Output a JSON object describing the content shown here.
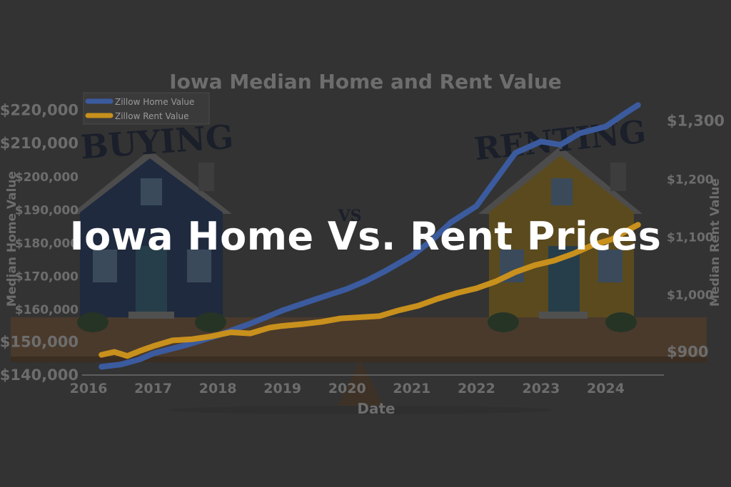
{
  "hero_title": "Iowa Home Vs. Rent Prices",
  "illustration": {
    "left_sign": "BUYING",
    "middle_sign": "VS",
    "right_sign": "RENTING"
  },
  "colors": {
    "background": "#333333",
    "home_series": "#3b5b9e",
    "rent_series": "#c8901c",
    "axis_text": "#6d6d6d",
    "hero_text": "#ffffff"
  },
  "chart_data": {
    "type": "line",
    "title": "Iowa Median Home and Rent Value",
    "xlabel": "Date",
    "ylabel": "Median Home Value",
    "y2label": "Median Rent Value",
    "x_ticks": [
      "2016",
      "2017",
      "2018",
      "2019",
      "2020",
      "2021",
      "2022",
      "2023",
      "2024"
    ],
    "y_ticks": [
      "$140,000",
      "$150,000",
      "$160,000",
      "$170,000",
      "$180,000",
      "$190,000",
      "$200,000",
      "$210,000",
      "$220,000"
    ],
    "y2_ticks": [
      "$900",
      "$1,000",
      "$1,100",
      "$1,200",
      "$1,300"
    ],
    "xlim": [
      2015.9,
      2024.9
    ],
    "ylim": [
      140000,
      222000
    ],
    "y2lim": [
      860,
      1330
    ],
    "legend_position": "top-left",
    "series": [
      {
        "name": "Zillow Home Value",
        "axis": "left",
        "color": "#3b5b9e",
        "x": [
          2016.2,
          2016.5,
          2016.8,
          2017.0,
          2017.5,
          2018.0,
          2018.5,
          2019.0,
          2019.5,
          2020.0,
          2020.3,
          2020.6,
          2021.0,
          2021.3,
          2021.6,
          2022.0,
          2022.3,
          2022.6,
          2023.0,
          2023.3,
          2023.6,
          2024.0,
          2024.3,
          2024.5
        ],
        "y": [
          142500,
          143200,
          144800,
          146500,
          149000,
          152000,
          155500,
          159500,
          162800,
          166000,
          168500,
          171500,
          176000,
          180500,
          186000,
          191000,
          199000,
          207000,
          210500,
          209500,
          213000,
          215000,
          219000,
          221500
        ]
      },
      {
        "name": "Zillow Rent Value",
        "axis": "right",
        "color": "#c8901c",
        "x": [
          2016.2,
          2016.4,
          2016.6,
          2016.8,
          2017.0,
          2017.3,
          2017.6,
          2017.9,
          2018.2,
          2018.5,
          2018.8,
          2019.0,
          2019.3,
          2019.6,
          2019.9,
          2020.2,
          2020.5,
          2020.8,
          2021.1,
          2021.4,
          2021.7,
          2022.0,
          2022.3,
          2022.6,
          2022.9,
          2023.2,
          2023.5,
          2023.8,
          2024.1,
          2024.3,
          2024.5
        ],
        "y": [
          895,
          900,
          893,
          902,
          910,
          920,
          922,
          927,
          934,
          932,
          942,
          945,
          948,
          952,
          958,
          960,
          962,
          972,
          980,
          992,
          1002,
          1010,
          1022,
          1038,
          1050,
          1058,
          1070,
          1085,
          1095,
          1108,
          1120
        ]
      }
    ]
  }
}
